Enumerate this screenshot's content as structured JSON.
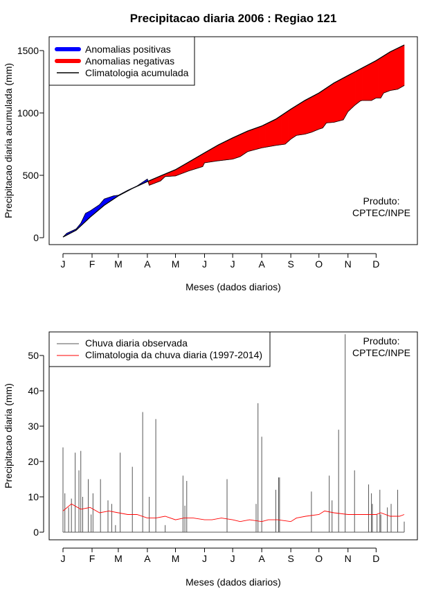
{
  "figure": {
    "title": "Precipitacao diaria 2006 : Regiao 121",
    "credit_line1": "Produto:",
    "credit_line2": "CPTEC/INPE"
  },
  "chart_data": [
    {
      "type": "area",
      "id": "accumulated",
      "xlabel": "Meses (dados diarios)",
      "ylabel": "Precipitacao diaria acumulada (mm)",
      "x_tick_labels": [
        "J",
        "F",
        "M",
        "A",
        "M",
        "J",
        "J",
        "A",
        "S",
        "O",
        "N",
        "D"
      ],
      "x_tick_days": [
        1,
        32,
        60,
        91,
        121,
        152,
        182,
        213,
        244,
        274,
        305,
        335
      ],
      "xlim": [
        1,
        365
      ],
      "ylim": [
        0,
        1550
      ],
      "y_ticks": [
        0,
        500,
        1000,
        1500
      ],
      "legend_location": "top-left",
      "legend": [
        {
          "label": "Anomalias positivas",
          "color": "#0000ff",
          "style": "thick-line"
        },
        {
          "label": "Anomalias negativas",
          "color": "#ff0000",
          "style": "thick-line"
        },
        {
          "label": "Climatologia acumulada",
          "color": "#000000",
          "style": "line"
        }
      ],
      "series": [
        {
          "name": "Climatologia acumulada",
          "color": "#000000",
          "days": [
            1,
            15,
            30,
            45,
            60,
            75,
            91,
            105,
            121,
            136,
            152,
            167,
            182,
            198,
            213,
            228,
            244,
            259,
            274,
            290,
            305,
            320,
            335,
            350,
            365
          ],
          "values": [
            5,
            60,
            165,
            260,
            335,
            395,
            450,
            495,
            545,
            610,
            680,
            745,
            800,
            855,
            895,
            950,
            1030,
            1100,
            1160,
            1240,
            1300,
            1360,
            1420,
            1490,
            1545
          ]
        },
        {
          "name": "Acumulada observada",
          "color": "#000000",
          "days": [
            1,
            5,
            15,
            20,
            25,
            30,
            40,
            45,
            55,
            60,
            70,
            80,
            91,
            93,
            105,
            110,
            121,
            135,
            150,
            152,
            165,
            182,
            190,
            198,
            213,
            228,
            238,
            244,
            250,
            259,
            266,
            274,
            278,
            282,
            290,
            300,
            305,
            312,
            318,
            320,
            330,
            335,
            340,
            343,
            350,
            358,
            365
          ],
          "values": [
            5,
            35,
            70,
            115,
            195,
            215,
            265,
            310,
            335,
            340,
            380,
            415,
            470,
            420,
            455,
            490,
            495,
            535,
            570,
            600,
            615,
            630,
            650,
            690,
            720,
            740,
            750,
            790,
            820,
            830,
            845,
            870,
            880,
            920,
            925,
            945,
            1010,
            1060,
            1095,
            1100,
            1100,
            1120,
            1120,
            1160,
            1180,
            1190,
            1220
          ]
        }
      ]
    },
    {
      "type": "line",
      "id": "daily",
      "xlabel": "Meses (dados diarios)",
      "ylabel": "Precipitacao diaria (mm)",
      "x_tick_labels": [
        "J",
        "F",
        "M",
        "A",
        "M",
        "J",
        "J",
        "A",
        "S",
        "O",
        "N",
        "D"
      ],
      "x_tick_days": [
        1,
        32,
        60,
        91,
        121,
        152,
        182,
        213,
        244,
        274,
        305,
        335
      ],
      "xlim": [
        1,
        365
      ],
      "ylim": [
        0,
        55
      ],
      "y_ticks": [
        0,
        10,
        20,
        30,
        40,
        50
      ],
      "legend_location": "top-left",
      "legend": [
        {
          "label": "Chuva diaria observada",
          "color": "#555555"
        },
        {
          "label": "Climatologia da chuva diaria (1997-2014)",
          "color": "#ff0000"
        }
      ],
      "series": [
        {
          "name": "Chuva diaria observada",
          "color": "#555555",
          "style": "vertical-bars",
          "days": [
            1,
            3,
            7,
            10,
            14,
            18,
            20,
            22,
            28,
            31,
            33,
            41,
            49,
            53,
            57,
            62,
            75,
            86,
            93,
            100,
            110,
            129,
            131,
            133,
            176,
            207,
            209,
            213,
            228,
            231,
            232,
            266,
            285,
            288,
            295,
            302,
            312,
            327,
            330,
            331,
            336,
            339,
            340,
            347,
            351,
            358,
            365
          ],
          "values": [
            24,
            11,
            7,
            9.5,
            22.5,
            17.5,
            23,
            10,
            15,
            5,
            11,
            15,
            9,
            8,
            2,
            22.5,
            18.5,
            34,
            10,
            32,
            2,
            16,
            7.5,
            14.5,
            15,
            8,
            36.5,
            27,
            12,
            15.5,
            15.5,
            11.5,
            16,
            9,
            29,
            56,
            17.5,
            13.5,
            11,
            8,
            5,
            12,
            5,
            7,
            8,
            12,
            3
          ]
        },
        {
          "name": "Climatologia da chuva diaria (1997-2014)",
          "color": "#ff0000",
          "style": "line",
          "days": [
            1,
            10,
            20,
            30,
            40,
            50,
            60,
            70,
            80,
            91,
            100,
            110,
            121,
            130,
            140,
            152,
            160,
            170,
            182,
            190,
            200,
            213,
            220,
            230,
            244,
            250,
            260,
            274,
            280,
            290,
            305,
            310,
            320,
            335,
            340,
            350,
            360,
            365
          ],
          "values": [
            6,
            8,
            6.5,
            7,
            5.5,
            6,
            5.5,
            5,
            5,
            4,
            4,
            4.5,
            3.5,
            4,
            4,
            3.5,
            3.5,
            4,
            3.5,
            3,
            3.5,
            3,
            3.5,
            3.5,
            3,
            4,
            4.5,
            5,
            6,
            5.5,
            5,
            5,
            5,
            5,
            5.5,
            4.5,
            4.5,
            5
          ]
        }
      ]
    }
  ]
}
